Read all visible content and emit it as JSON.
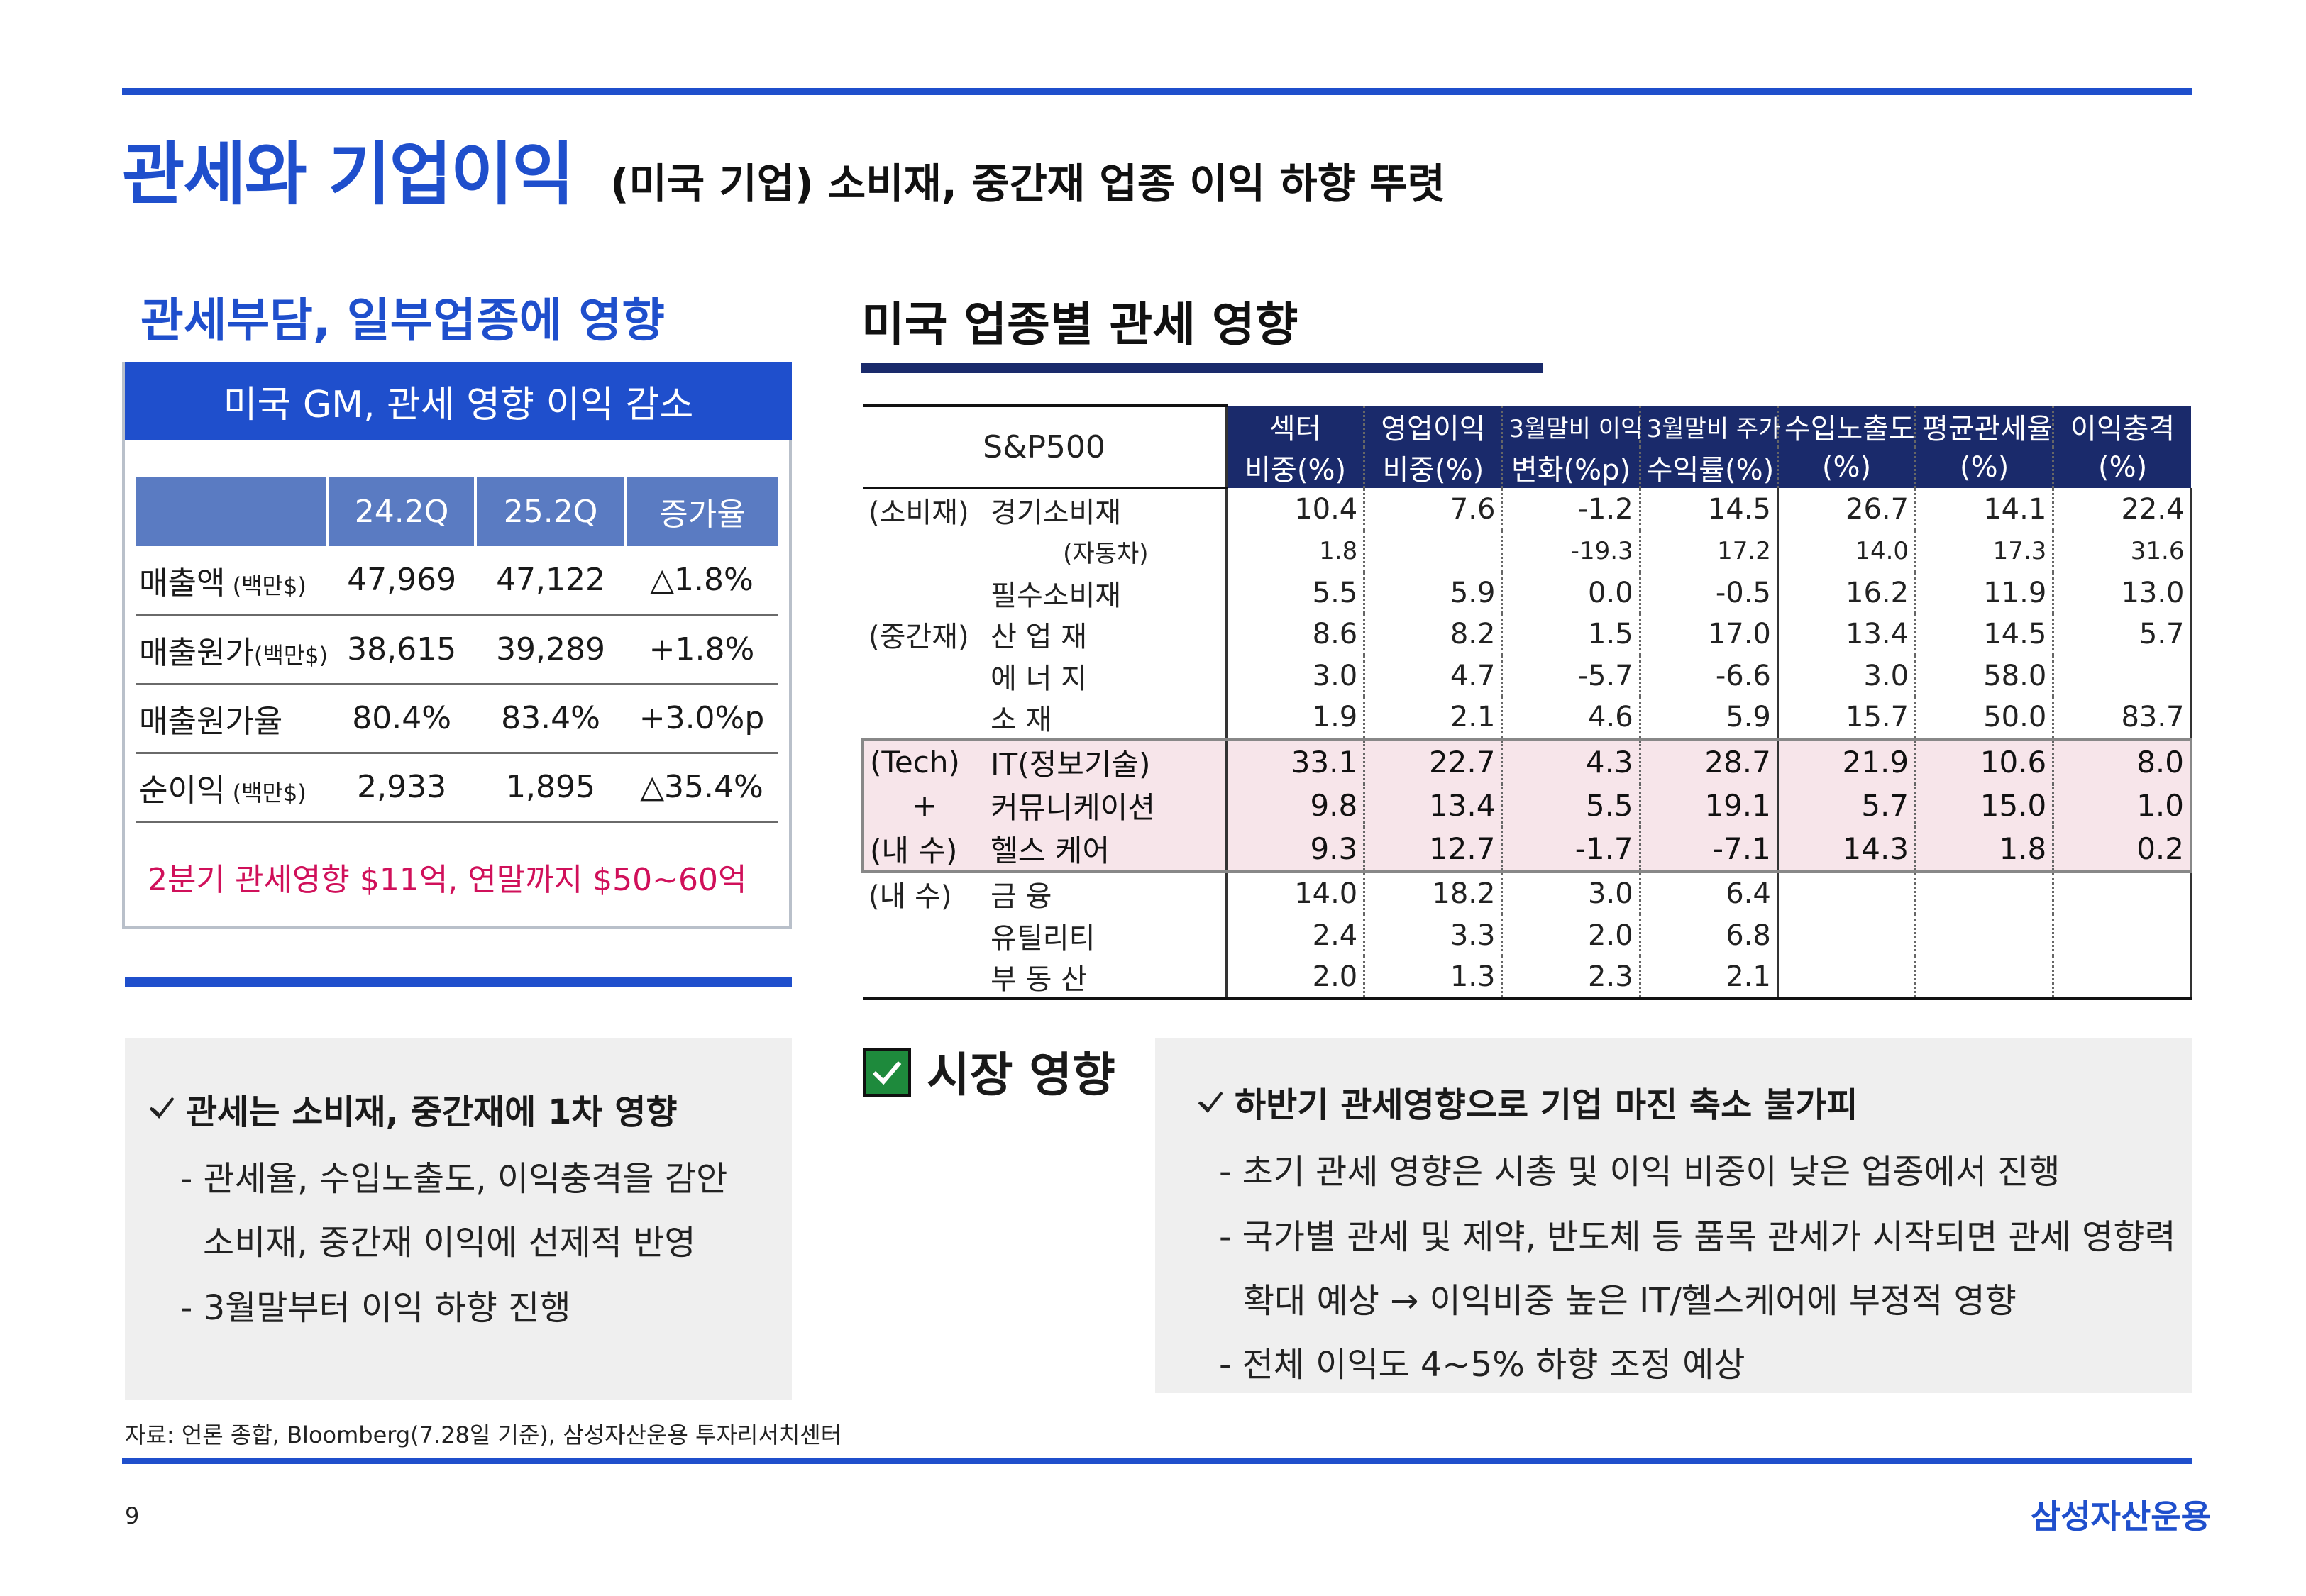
{
  "header": {
    "title": "관세와 기업이익",
    "subtitle": "(미국 기업)  소비재, 중간재 업종 이익 하향 뚜렷"
  },
  "left": {
    "heading": "관세부담, 일부업종에 영향",
    "box_title": "미국 GM, 관세 영향 이익 감소",
    "table": {
      "columns": [
        "24.2Q",
        "25.2Q",
        "증가율"
      ],
      "rows": [
        {
          "label": "매출액",
          "unit": " (백만$)",
          "v1": "47,969",
          "v2": "47,122",
          "v3": "△1.8%"
        },
        {
          "label": "매출원가",
          "unit": "(백만$)",
          "v1": "38,615",
          "v2": "39,289",
          "v3": "+1.8%"
        },
        {
          "label": "매출원가율",
          "unit": "",
          "v1": "80.4%",
          "v2": "83.4%",
          "v3": "+3.0%p"
        },
        {
          "label": "순이익",
          "unit": " (백만$)",
          "v1": "2,933",
          "v2": "1,895",
          "v3": "△35.4%"
        }
      ]
    },
    "note": "2분기 관세영향 $11억, 연말까지 $50~60억",
    "bullets": {
      "head": "관세는 소비재, 중간재에 1차 영향",
      "lines": [
        "- 관세율, 수입노출도, 이익충격을 감안",
        "소비재, 중간재 이익에 선제적 반영",
        "- 3월말부터 이익 하향 진행"
      ]
    }
  },
  "right": {
    "heading": "미국 업종별 관세 영향",
    "table": {
      "index_label": "S&P500",
      "headers_top": [
        "섹터",
        "영업이익",
        "3월말비 이익",
        "3월말비 주가",
        "수입노출도",
        "평균관세율",
        "이익충격"
      ],
      "headers_bottom": [
        "비중(%)",
        "비중(%)",
        "변화(%p)",
        "수익률(%)",
        "(%)",
        "(%)",
        "(%)"
      ],
      "rows": [
        {
          "group": "(소비재)",
          "name": "경기소비재",
          "vals": [
            "10.4",
            "7.6",
            "-1.2",
            "14.5",
            "26.7",
            "14.1",
            "22.4"
          ]
        },
        {
          "group": "",
          "name": "(자동차)",
          "vals": [
            "1.8",
            "",
            "-19.3",
            "17.2",
            "14.0",
            "17.3",
            "31.6"
          ]
        },
        {
          "group": "",
          "name": "필수소비재",
          "vals": [
            "5.5",
            "5.9",
            "0.0",
            "-0.5",
            "16.2",
            "11.9",
            "13.0"
          ]
        },
        {
          "group": "(중간재)",
          "name": "산 업 재",
          "vals": [
            "8.6",
            "8.2",
            "1.5",
            "17.0",
            "13.4",
            "14.5",
            "5.7"
          ]
        },
        {
          "group": "",
          "name": "에 너 지",
          "vals": [
            "3.0",
            "4.7",
            "-5.7",
            "-6.6",
            "3.0",
            "58.0",
            ""
          ]
        },
        {
          "group": "",
          "name": "소      재",
          "vals": [
            "1.9",
            "2.1",
            "4.6",
            "5.9",
            "15.7",
            "50.0",
            "83.7"
          ]
        },
        {
          "group": "(Tech)",
          "name": "IT(정보기술)",
          "vals": [
            "33.1",
            "22.7",
            "4.3",
            "28.7",
            "21.9",
            "10.6",
            "8.0"
          ]
        },
        {
          "group": "+",
          "name": "커뮤니케이션",
          "vals": [
            "9.8",
            "13.4",
            "5.5",
            "19.1",
            "5.7",
            "15.0",
            "1.0"
          ]
        },
        {
          "group": "(내 수)",
          "name": "헬스 케어",
          "vals": [
            "9.3",
            "12.7",
            "-1.7",
            "-7.1",
            "14.3",
            "1.8",
            "0.2"
          ]
        },
        {
          "group": "(내 수)",
          "name": "금      융",
          "vals": [
            "14.0",
            "18.2",
            "3.0",
            "6.4",
            "",
            "",
            ""
          ]
        },
        {
          "group": "",
          "name": "유틸리티",
          "vals": [
            "2.4",
            "3.3",
            "2.0",
            "6.8",
            "",
            "",
            ""
          ]
        },
        {
          "group": "",
          "name": "부 동 산",
          "vals": [
            "2.0",
            "1.3",
            "2.3",
            "2.1",
            "",
            "",
            ""
          ]
        }
      ]
    },
    "market": {
      "heading": "시장 영향",
      "head": "하반기 관세영향으로 기업 마진 축소 불가피",
      "lines": [
        "- 초기 관세 영향은 시총 및 이익 비중이 낮은 업종에서 진행",
        "- 국가별 관세 및 제약, 반도체 등 품목 관세가 시작되면 관세 영향력",
        "확대 예상 → 이익비중 높은 IT/헬스케어에 부정적 영향",
        "- 전체 이익도 4~5% 하향 조정 예상"
      ]
    }
  },
  "footer": {
    "source": "자료: 언론 종합, Bloomberg(7.28일 기준), 삼성자산운용 투자리서치센터",
    "page": "9",
    "logo": "삼성자산운용"
  },
  "colors": {
    "brand_blue": "#1f4fcc",
    "navy": "#1a2a6b",
    "note_pink": "#d0105a",
    "tech_highlight": "#f7e5ea",
    "check_green": "#1e8a3c"
  }
}
